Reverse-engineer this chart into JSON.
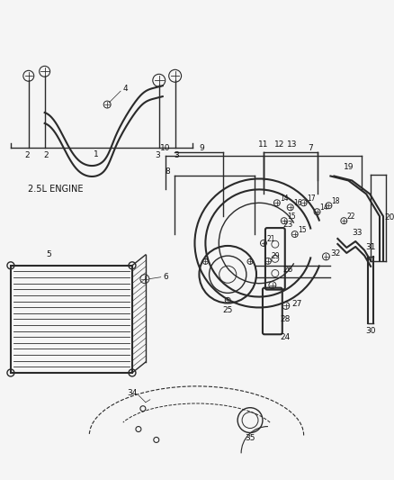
{
  "bg_color": "#f5f5f5",
  "line_color": "#2a2a2a",
  "label_color": "#111111",
  "engine_label": "2.5L ENGINE",
  "figsize": [
    4.38,
    5.33
  ],
  "dpi": 100,
  "xlim": [
    0,
    438
  ],
  "ylim": [
    0,
    533
  ]
}
